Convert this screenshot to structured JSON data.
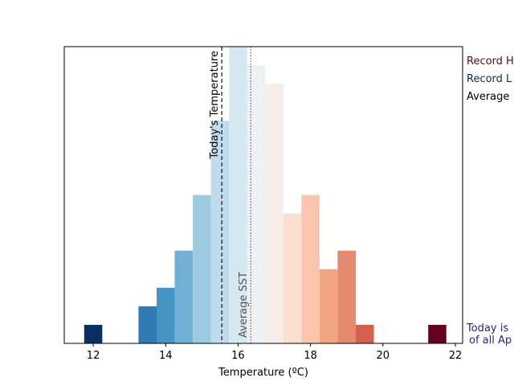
{
  "chart_data": {
    "type": "bar",
    "xlabel": "Temperature (ºC)",
    "ylabel": "",
    "xlim": [
      11.2,
      22.2
    ],
    "ylim": [
      0,
      16
    ],
    "x_ticks": [
      12,
      14,
      16,
      18,
      20,
      22
    ],
    "bin_width": 0.5,
    "bins": [
      {
        "left": 11.75,
        "count": 1,
        "color": "#053061"
      },
      {
        "left": 13.25,
        "count": 2,
        "color": "#2f79b5"
      },
      {
        "left": 13.75,
        "count": 3,
        "color": "#4393c3"
      },
      {
        "left": 14.25,
        "count": 5,
        "color": "#71b0d4"
      },
      {
        "left": 14.75,
        "count": 8,
        "color": "#9ccae1"
      },
      {
        "left": 15.25,
        "count": 12,
        "color": "#bfdced"
      },
      {
        "left": 15.75,
        "count": 16,
        "color": "#d7e8f1"
      },
      {
        "left": 16.25,
        "count": 15,
        "color": "#eef1f4"
      },
      {
        "left": 16.75,
        "count": 14,
        "color": "#f7ede8"
      },
      {
        "left": 17.25,
        "count": 7,
        "color": "#fbdfd0"
      },
      {
        "left": 17.75,
        "count": 8,
        "color": "#f9c6ad"
      },
      {
        "left": 18.25,
        "count": 4,
        "color": "#f3a682"
      },
      {
        "left": 18.75,
        "count": 5,
        "color": "#e68a6f"
      },
      {
        "left": 19.25,
        "count": 1,
        "color": "#d6604d"
      },
      {
        "left": 21.25,
        "count": 1,
        "color": "#67001f"
      }
    ],
    "today_temperature": 15.55,
    "average_sst": 16.35,
    "annotations": {
      "today_line_label": "Today's Temperature",
      "average_line_label": "Average SST"
    },
    "side_labels": [
      {
        "text": "Record H",
        "color": "#67001f"
      },
      {
        "text": "Record L",
        "color": "#053061"
      },
      {
        "text": "Average",
        "color": "#000000"
      }
    ],
    "footer_label": {
      "line1": "Today is",
      "line2": "of all Ap",
      "color": "#2c1e8c"
    }
  }
}
